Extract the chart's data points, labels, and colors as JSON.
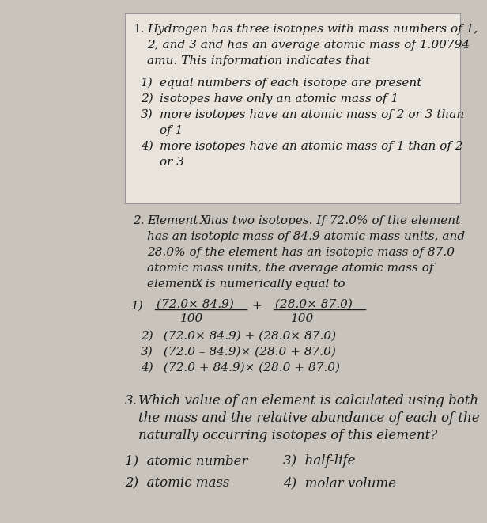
{
  "bg_color": "#c8c4bc",
  "page_color": "#e8e4dc",
  "text_color": "#1a1a1a",
  "box_border": "#999999",
  "q1_num": "1.",
  "q1_line1": "Hydrogen has three isotopes with mass numbers of 1,",
  "q1_line2": "2, and 3 and has an average atomic mass of 1.00794",
  "q1_line3": "amu. This information indicates that",
  "q1_opt1": "1)  equal numbers of each isotope are present",
  "q1_opt2": "2)  isotopes have only an atomic mass of 1",
  "q1_opt3a": "3)  more isotopes have an atomic mass of 2 or 3 than",
  "q1_opt3b": "      of 1",
  "q1_opt4a": "4)  more isotopes have an atomic mass of 1 than of 2",
  "q1_opt4b": "      or 3",
  "q2_num": "2.",
  "q2_line1a": "Element ",
  "q2_line1b": "X",
  "q2_line1c": "has two isotopes. If 72.0% of the element",
  "q2_line2": "has an isotopic mass of 84.9 atomic mass units, and",
  "q2_line3": "28.0% of the element has an isotopic mass of 87.0",
  "q2_line4": "atomic mass units, the average atomic mass of",
  "q2_line5a": "element ",
  "q2_line5b": "X",
  "q2_line5c": " is numerically equal to",
  "q2_opt1_label": "1)",
  "q2_opt1_num1": "(72.0× 84.9)",
  "q2_opt1_den1": "100",
  "q2_opt1_plus": "+",
  "q2_opt1_num2": "(28.0× 87.0)",
  "q2_opt1_den2": "100",
  "q2_opt2": "2)  (72.0× 84.9) + (28.0× 87.0)",
  "q2_opt3": "3)  (72.0 – 84.9)× (28.0 + 87.0)",
  "q2_opt4": "4)  (72.0 + 84.9)× (28.0 + 87.0)",
  "q3_num": "3.",
  "q3_line1": "Which value of an element is calculated using both",
  "q3_line2": "the mass and the relative abundance of each of the",
  "q3_line3": "naturally occurring isotopes of this element?",
  "q3_c1r1": "1)  atomic number",
  "q3_c1r2": "2)  atomic mass",
  "q3_c2r1": "3)  half-life",
  "q3_c2r2": "4)  molar volume",
  "fs": 11.0,
  "fs_q3": 12.0
}
